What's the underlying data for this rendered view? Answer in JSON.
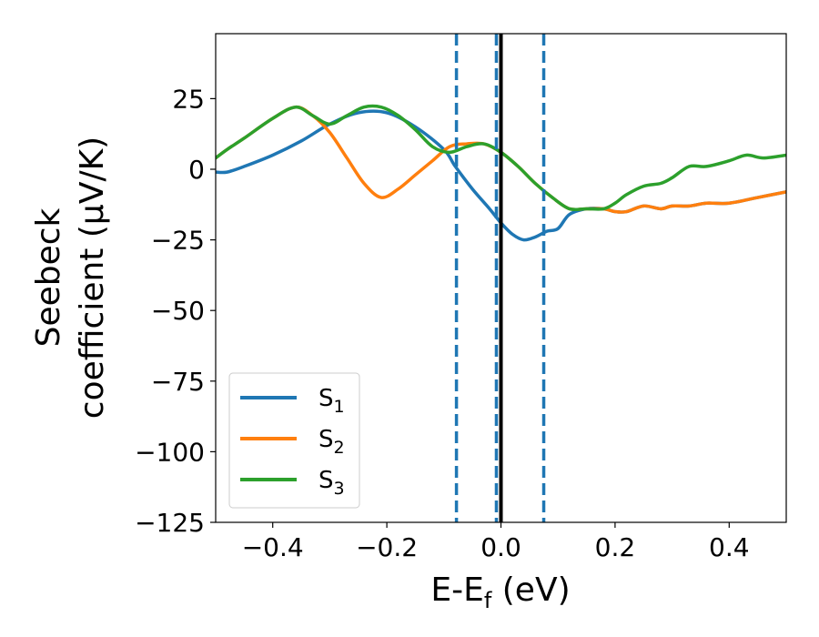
{
  "chart_data": {
    "type": "line",
    "xlabel": {
      "main": "E-E",
      "sub": "f",
      "suffix": " (eV)"
    },
    "ylabel": {
      "line1": "Seebeck",
      "line2": "coefficient  (μV/K)"
    },
    "xlim": [
      -0.5,
      0.5
    ],
    "ylim": [
      -125,
      48
    ],
    "x_ticks": [
      -0.4,
      -0.2,
      0.0,
      0.2,
      0.4
    ],
    "x_tick_labels": [
      "−0.4",
      "−0.2",
      "0.0",
      "0.2",
      "0.4"
    ],
    "y_ticks": [
      25,
      0,
      -25,
      -50,
      -75,
      -100,
      -125
    ],
    "y_tick_labels": [
      "25",
      "0",
      "−25",
      "−50",
      "−75",
      "−100",
      "−125"
    ],
    "grid": false,
    "legend_position": "lower-left",
    "vertical_lines": [
      {
        "x": -0.078,
        "style": "dashed",
        "color": "#1f77b4"
      },
      {
        "x": -0.008,
        "style": "dashed",
        "color": "#1f77b4"
      },
      {
        "x": 0.075,
        "style": "dashed",
        "color": "#1f77b4"
      },
      {
        "x": 0.0,
        "style": "solid",
        "color": "#000000"
      }
    ],
    "series": [
      {
        "name": "S",
        "sub": "1",
        "color": "#1f77b4",
        "x": [
          -0.5,
          -0.48,
          -0.45,
          -0.4,
          -0.35,
          -0.3,
          -0.25,
          -0.2,
          -0.15,
          -0.1,
          -0.08,
          -0.05,
          -0.02,
          0.0,
          0.02,
          0.04,
          0.06,
          0.08,
          0.1,
          0.12,
          0.15,
          0.18,
          0.2,
          0.22,
          0.25,
          0.28,
          0.3,
          0.33,
          0.36,
          0.4,
          0.45,
          0.5
        ],
        "y": [
          -1,
          -1,
          1,
          5,
          10,
          16,
          20,
          20,
          15,
          7,
          1,
          -7,
          -14,
          -19,
          -23,
          -25,
          -24,
          -22,
          -21,
          -16,
          -14,
          -14,
          -15,
          -15,
          -13,
          -14,
          -13,
          -13,
          -12,
          -12,
          -10,
          -8
        ]
      },
      {
        "name": "S",
        "sub": "2",
        "color": "#ff7f0e",
        "x": [
          -0.5,
          -0.48,
          -0.45,
          -0.4,
          -0.36,
          -0.33,
          -0.3,
          -0.27,
          -0.24,
          -0.21,
          -0.18,
          -0.15,
          -0.12,
          -0.09,
          -0.06,
          -0.03,
          0.0,
          0.03,
          0.06,
          0.09,
          0.12,
          0.15,
          0.18,
          0.2,
          0.22,
          0.25,
          0.28,
          0.3,
          0.33,
          0.36,
          0.4,
          0.45,
          0.5
        ],
        "y": [
          4,
          7,
          11,
          18,
          22,
          19,
          13,
          4,
          -5,
          -10,
          -7,
          -2,
          3,
          8,
          9,
          9,
          6,
          1,
          -5,
          -10,
          -14,
          -14,
          -14,
          -15,
          -15,
          -13,
          -14,
          -13,
          -13,
          -12,
          -12,
          -10,
          -8
        ]
      },
      {
        "name": "S",
        "sub": "3",
        "color": "#2ca02c",
        "x": [
          -0.5,
          -0.48,
          -0.45,
          -0.4,
          -0.36,
          -0.33,
          -0.3,
          -0.27,
          -0.24,
          -0.21,
          -0.18,
          -0.15,
          -0.12,
          -0.09,
          -0.06,
          -0.03,
          0.0,
          0.03,
          0.06,
          0.09,
          0.12,
          0.15,
          0.18,
          0.2,
          0.22,
          0.25,
          0.28,
          0.3,
          0.33,
          0.36,
          0.4,
          0.43,
          0.46,
          0.5
        ],
        "y": [
          4,
          7,
          11,
          18,
          22,
          19,
          16,
          19,
          22,
          22,
          19,
          14,
          8,
          6,
          8,
          9,
          6,
          1,
          -5,
          -10,
          -14,
          -14,
          -14,
          -12,
          -9,
          -6,
          -5,
          -3,
          1,
          1,
          3,
          5,
          4,
          5
        ]
      }
    ]
  }
}
